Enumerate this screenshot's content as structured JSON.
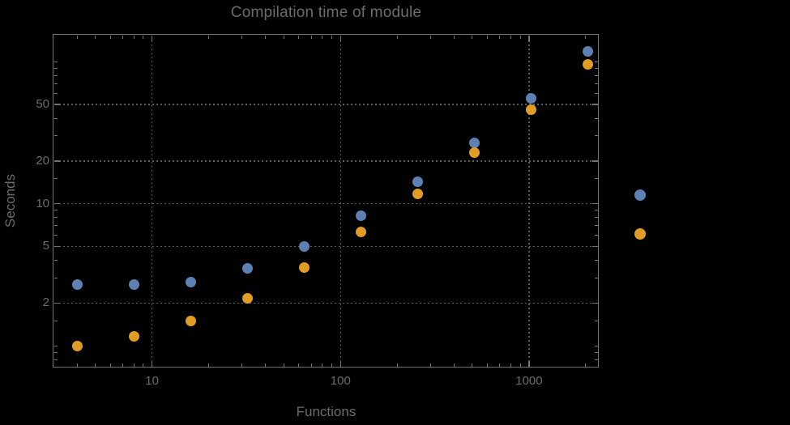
{
  "styles": {
    "background": "#000000",
    "text_color": "#6b6b6b",
    "frame_color": "#747474",
    "grid_color": "#5a5a5a",
    "series1_color": "#5E81B5",
    "series2_color": "#E19C24"
  },
  "chart_data": {
    "type": "scatter",
    "title": "Compilation time of module",
    "xlabel": "Functions",
    "ylabel": "Seconds",
    "xscale": "log",
    "yscale": "log",
    "xlim": [
      3.0,
      2344
    ],
    "ylim": [
      0.703,
      154.6
    ],
    "grid": "major ticks only, dotted gray",
    "legend_position": "right-outside, markers only (no visible labels)",
    "x": [
      4,
      8,
      16,
      32,
      64,
      128,
      256,
      512,
      1024,
      2048
    ],
    "series": [
      {
        "name": "",
        "color": "#5E81B5",
        "values": [
          2.7,
          2.7,
          2.8,
          3.5,
          5.0,
          8.2,
          14.2,
          26.8,
          55,
          118
        ]
      },
      {
        "name": "",
        "color": "#E19C24",
        "values": [
          1.0,
          1.17,
          1.5,
          2.15,
          3.55,
          6.3,
          11.8,
          22.8,
          46,
          96
        ]
      }
    ],
    "x_ticks": [
      {
        "value": 10,
        "label": "10"
      },
      {
        "value": 100,
        "label": "100"
      },
      {
        "value": 1000,
        "label": "1000"
      }
    ],
    "y_ticks": [
      {
        "value": 2,
        "label": "2"
      },
      {
        "value": 5,
        "label": "5"
      },
      {
        "value": 10,
        "label": "10"
      },
      {
        "value": 20,
        "label": "20"
      },
      {
        "value": 50,
        "label": "50"
      }
    ],
    "x_minor_ticks": [
      4,
      5,
      6,
      7,
      8,
      9,
      20,
      30,
      40,
      50,
      60,
      70,
      80,
      90,
      200,
      300,
      400,
      500,
      600,
      700,
      800,
      900,
      2000
    ],
    "y_minor_ticks": [
      0.8,
      0.9,
      1,
      1.5,
      3,
      4,
      6,
      7,
      8,
      9,
      15,
      30,
      40,
      60,
      70,
      80,
      90,
      100
    ],
    "legend_markers": [
      {
        "color": "#5E81B5",
        "label": ""
      },
      {
        "color": "#E19C24",
        "label": ""
      }
    ]
  }
}
